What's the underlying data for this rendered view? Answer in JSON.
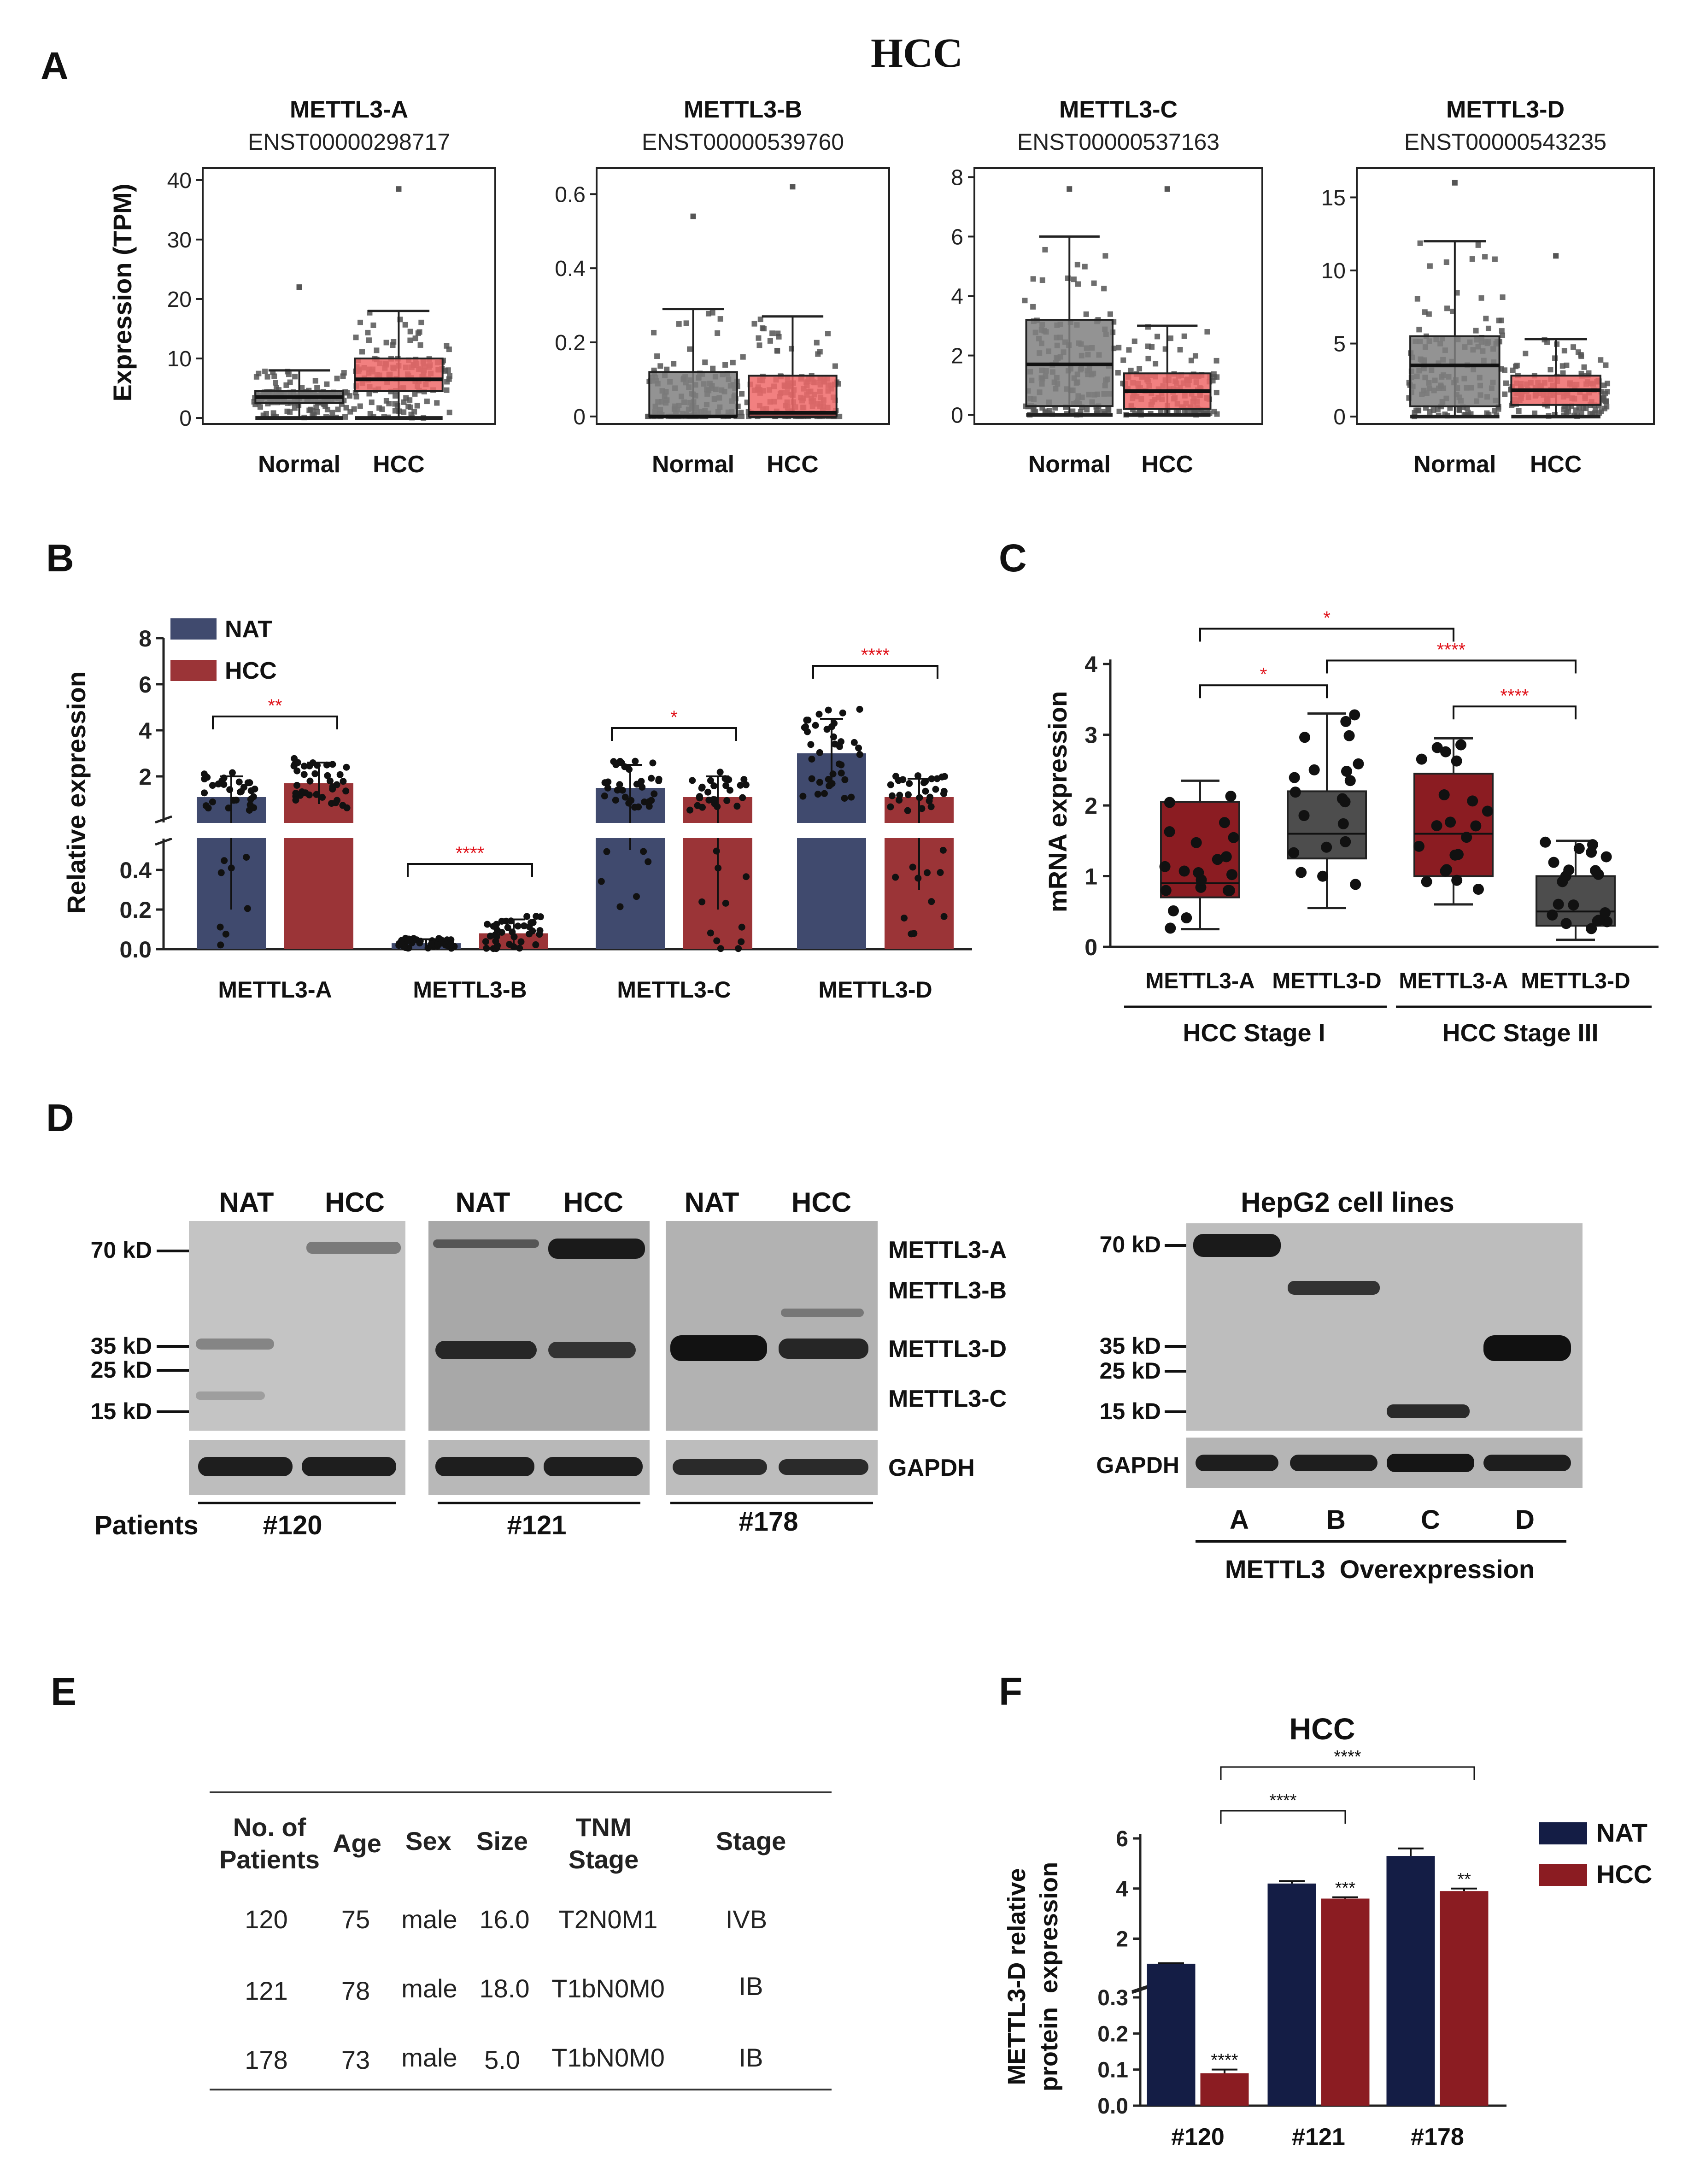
{
  "figure": {
    "main_title": "HCC",
    "panel_labels": {
      "a": "A",
      "b": "B",
      "c": "C",
      "d": "D",
      "e": "E",
      "f": "F"
    }
  },
  "chart_data": [
    {
      "panel": "A",
      "type": "box",
      "ylabel": "Expression (TPM)",
      "groups": [
        "Normal",
        "HCC"
      ],
      "colors": {
        "Normal": "#808080",
        "HCC": "#f06a6a"
      },
      "subplots": [
        {
          "title": "METTL3-A",
          "subtitle": "ENST00000298717",
          "ylim": [
            -1,
            42
          ],
          "ticks": [
            0,
            10,
            20,
            30,
            40
          ],
          "boxes": [
            {
              "group": "Normal",
              "min": 0,
              "q1": 2.5,
              "median": 3.5,
              "q3": 4.5,
              "max": 8
            },
            {
              "group": "HCC",
              "min": 0,
              "q1": 4.5,
              "median": 6.5,
              "q3": 10,
              "max": 18
            }
          ],
          "outliers": [
            {
              "group": "Normal",
              "values": [
                22
              ]
            },
            {
              "group": "HCC",
              "values": [
                38.5
              ]
            }
          ]
        },
        {
          "title": "METTL3-B",
          "subtitle": "ENST00000539760",
          "ylim": [
            -0.02,
            0.67
          ],
          "ticks": [
            0,
            0.2,
            0.4,
            0.6
          ],
          "boxes": [
            {
              "group": "Normal",
              "min": 0,
              "q1": 0,
              "median": 0,
              "q3": 0.12,
              "max": 0.29
            },
            {
              "group": "HCC",
              "min": 0,
              "q1": 0,
              "median": 0.01,
              "q3": 0.11,
              "max": 0.27
            }
          ],
          "outliers": [
            {
              "group": "Normal",
              "values": [
                0.54
              ]
            },
            {
              "group": "HCC",
              "values": [
                0.62
              ]
            }
          ]
        },
        {
          "title": "METTL3-C",
          "subtitle": "ENST00000537163",
          "ylim": [
            -0.3,
            8.3
          ],
          "ticks": [
            0,
            2,
            4,
            6,
            8
          ],
          "boxes": [
            {
              "group": "Normal",
              "min": 0,
              "q1": 0.3,
              "median": 1.7,
              "q3": 3.2,
              "max": 6
            },
            {
              "group": "HCC",
              "min": 0,
              "q1": 0.2,
              "median": 0.8,
              "q3": 1.4,
              "max": 3
            }
          ],
          "outliers": [
            {
              "group": "Normal",
              "values": [
                7.6
              ]
            },
            {
              "group": "HCC",
              "values": [
                7.6
              ]
            }
          ]
        },
        {
          "title": "METTL3-D",
          "subtitle": "ENST00000543235",
          "ylim": [
            -0.5,
            17
          ],
          "ticks": [
            0,
            5,
            10,
            15
          ],
          "boxes": [
            {
              "group": "Normal",
              "min": 0,
              "q1": 0.7,
              "median": 3.5,
              "q3": 5.5,
              "max": 12
            },
            {
              "group": "HCC",
              "min": 0,
              "q1": 0.8,
              "median": 1.8,
              "q3": 2.8,
              "max": 5.3
            }
          ],
          "outliers": [
            {
              "group": "Normal",
              "values": [
                16
              ]
            },
            {
              "group": "HCC",
              "values": [
                11
              ]
            }
          ]
        }
      ]
    },
    {
      "panel": "B",
      "type": "bar",
      "ylabel": "Relative expression",
      "yaxis_break": {
        "lower_range": [
          0,
          0.5
        ],
        "upper_range": [
          0.5,
          8
        ]
      },
      "lower_ticks": [
        0.0,
        0.2,
        0.4
      ],
      "upper_ticks": [
        2,
        4,
        6,
        8
      ],
      "categories": [
        "METTL3-A",
        "METTL3-B",
        "METTL3-C",
        "METTL3-D"
      ],
      "series": [
        {
          "name": "NAT",
          "color": "#404a6e",
          "values": [
            1.1,
            0.03,
            1.5,
            3.0
          ],
          "sd": [
            0.9,
            0.02,
            1.0,
            1.5
          ]
        },
        {
          "name": "HCC",
          "color": "#9b3437",
          "values": [
            1.7,
            0.08,
            1.1,
            1.1
          ],
          "sd": [
            0.9,
            0.07,
            0.9,
            0.8
          ]
        }
      ],
      "significance": [
        "**",
        "****",
        "*",
        "****"
      ]
    },
    {
      "panel": "C",
      "type": "box",
      "ylabel": "mRNA expression",
      "ylim": [
        0,
        4
      ],
      "ticks": [
        0,
        1,
        2,
        3,
        4
      ],
      "boxes": [
        {
          "label": "METTL3-A",
          "stage": "HCC Stage I",
          "color": "#8b1c22",
          "min": 0.25,
          "q1": 0.7,
          "median": 0.9,
          "q3": 2.05,
          "max": 2.35
        },
        {
          "label": "METTL3-D",
          "stage": "HCC Stage I",
          "color": "#4d4d4d",
          "min": 0.55,
          "q1": 1.25,
          "median": 1.6,
          "q3": 2.2,
          "max": 3.3
        },
        {
          "label": "METTL3-A",
          "stage": "HCC Stage III",
          "color": "#8b1c22",
          "min": 0.6,
          "q1": 1.0,
          "median": 1.6,
          "q3": 2.45,
          "max": 2.95
        },
        {
          "label": "METTL3-D",
          "stage": "HCC Stage III",
          "color": "#4d4d4d",
          "min": 0.1,
          "q1": 0.3,
          "median": 0.5,
          "q3": 1.0,
          "max": 1.5
        }
      ],
      "group_labels": [
        "HCC Stage I",
        "HCC Stage III"
      ],
      "comparisons": [
        {
          "from": 1,
          "to": 3,
          "label": "*",
          "y": 4.5
        },
        {
          "from": 1,
          "to": 2,
          "label": "*",
          "y": 3.7
        },
        {
          "from": 2,
          "to": 4,
          "label": "****",
          "y": 4.05
        },
        {
          "from": 3,
          "to": 4,
          "label": "****",
          "y": 3.4
        }
      ]
    },
    {
      "panel": "F",
      "type": "bar",
      "title": "HCC",
      "ylabel_line1": "METTL3-D relative",
      "ylabel_line2": "protein  expression",
      "yaxis_break": {
        "lower_range": [
          0,
          0.3
        ],
        "upper_range": [
          0.3,
          6
        ]
      },
      "lower_ticks": [
        0.0,
        0.1,
        0.2,
        0.3
      ],
      "upper_ticks": [
        2,
        4,
        6
      ],
      "categories": [
        "#120",
        "#121",
        "#178"
      ],
      "series": [
        {
          "name": "NAT",
          "color": "#141d45",
          "values": [
            1.0,
            4.2,
            5.3
          ],
          "sd": [
            0.02,
            0.1,
            0.3
          ]
        },
        {
          "name": "HCC",
          "color": "#8b1c22",
          "values": [
            0.09,
            3.6,
            3.9
          ],
          "sd": [
            0.01,
            0.05,
            0.1
          ]
        }
      ],
      "bar_significance": [
        "****",
        "***",
        "**"
      ],
      "comparisons": [
        {
          "from": "#120",
          "to": "#178",
          "label": "****"
        },
        {
          "from": "#120",
          "to": "#121",
          "label": "****"
        }
      ]
    }
  ],
  "panel_d": {
    "headers": [
      "NAT",
      "HCC"
    ],
    "mw_left": [
      "70 kD",
      "35 kD",
      "25 kD",
      "15 kD"
    ],
    "bands_right": [
      "METTL3-A",
      "METTL3-B",
      "METTL3-D",
      "METTL3-C"
    ],
    "loading": "GAPDH",
    "patients_label": "Patients",
    "patients": [
      "#120",
      "#121",
      "#178"
    ],
    "cell_title": "HepG2 cell lines",
    "cell_mw": [
      "70 kD",
      "35 kD",
      "25 kD",
      "15 kD"
    ],
    "cell_loading": "GAPDH",
    "cell_lanes": [
      "A",
      "B",
      "C",
      "D"
    ],
    "cell_caption": "METTL3  Overexpression"
  },
  "panel_e": {
    "headers": {
      "patients_1": "No. of",
      "patients_2": "Patients",
      "age": "Age",
      "sex": "Sex",
      "size": "Size",
      "tnm_1": "TNM",
      "tnm_2": "Stage",
      "stage": "Stage"
    },
    "rows": [
      {
        "no": "120",
        "age": "75",
        "sex": "male",
        "size": "16.0",
        "tnm": "T2N0M1",
        "stage": "IVB"
      },
      {
        "no": "121",
        "age": "78",
        "sex": "male",
        "size": "18.0",
        "tnm": "T1bN0M0",
        "stage": "IB"
      },
      {
        "no": "178",
        "age": "73",
        "sex": "male",
        "size": "5.0",
        "tnm": "T1bN0M0",
        "stage": "IB"
      }
    ]
  }
}
